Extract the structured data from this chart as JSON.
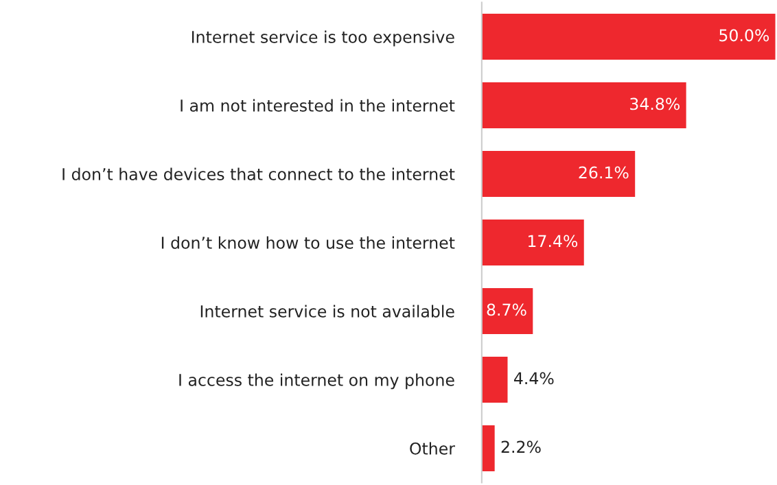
{
  "chart_data": {
    "type": "bar",
    "orientation": "horizontal",
    "categories": [
      "Internet service is too expensive",
      "I am not interested in the internet",
      "I don’t have devices that connect to the internet",
      "I don’t know how to use the internet",
      "Internet service is not available",
      "I access the internet on my phone",
      "Other"
    ],
    "values": [
      50.0,
      34.8,
      26.1,
      17.4,
      8.7,
      4.4,
      2.2
    ],
    "value_labels": [
      "50.0%",
      "34.8%",
      "26.1%",
      "17.4%",
      "8.7%",
      "4.4%",
      "2.2%"
    ],
    "color": "#ee282e",
    "xlim": [
      0,
      50
    ],
    "tick_labels": "y",
    "grid": false,
    "legend": false
  }
}
